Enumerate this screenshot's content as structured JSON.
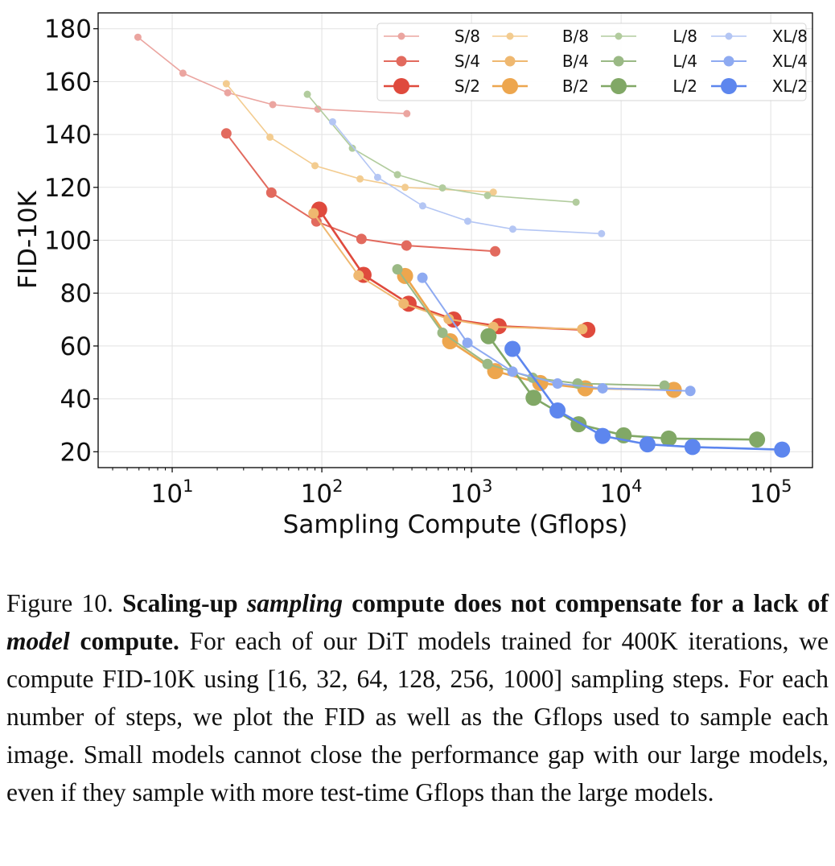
{
  "chart_data": {
    "type": "line",
    "xscale": "log",
    "xlim": [
      3.2,
      190000
    ],
    "ylim": [
      14,
      186
    ],
    "xlabel": "Sampling Compute (Gflops)",
    "ylabel": "FID-10K",
    "yticks": [
      20,
      40,
      60,
      80,
      100,
      120,
      140,
      160,
      180
    ],
    "xticks": [
      {
        "base": "10",
        "exp": "1",
        "value": 10
      },
      {
        "base": "10",
        "exp": "2",
        "value": 100
      },
      {
        "base": "10",
        "exp": "3",
        "value": 1000
      },
      {
        "base": "10",
        "exp": "4",
        "value": 10000
      },
      {
        "base": "10",
        "exp": "5",
        "value": 100000
      }
    ],
    "grid": true,
    "legend_position": "top-right",
    "series": [
      {
        "name": "S/8",
        "color": "#eba5a0",
        "size": "small",
        "points": [
          [
            5.9,
            176.8
          ],
          [
            11.8,
            163.2
          ],
          [
            23.5,
            155.8
          ],
          [
            47,
            151.3
          ],
          [
            94,
            149.6
          ],
          [
            370,
            147.9
          ]
        ]
      },
      {
        "name": "S/4",
        "color": "#e26a5e",
        "size": "medium",
        "points": [
          [
            23,
            140.4
          ],
          [
            46,
            118.0
          ],
          [
            92,
            107.1
          ],
          [
            184,
            100.5
          ],
          [
            368,
            98.0
          ],
          [
            1440,
            95.8
          ]
        ]
      },
      {
        "name": "S/2",
        "color": "#df4a3d",
        "size": "large",
        "points": [
          [
            96,
            111.6
          ],
          [
            190,
            86.9
          ],
          [
            380,
            76.0
          ],
          [
            760,
            70.0
          ],
          [
            1520,
            67.5
          ],
          [
            5950,
            66.1
          ]
        ]
      },
      {
        "name": "B/8",
        "color": "#f3cc90",
        "size": "small",
        "points": [
          [
            23,
            159.2
          ],
          [
            45,
            139.0
          ],
          [
            90,
            128.2
          ],
          [
            180,
            123.2
          ],
          [
            360,
            120.0
          ],
          [
            1400,
            118.2
          ]
        ]
      },
      {
        "name": "B/4",
        "color": "#efb870",
        "size": "medium",
        "points": [
          [
            88,
            110.2
          ],
          [
            176,
            86.7
          ],
          [
            352,
            76.0
          ],
          [
            704,
            70.2
          ],
          [
            1400,
            67.2
          ],
          [
            5500,
            66.4
          ]
        ]
      },
      {
        "name": "B/2",
        "color": "#eda64e",
        "size": "large",
        "points": [
          [
            360,
            86.5
          ],
          [
            720,
            61.8
          ],
          [
            1440,
            50.5
          ],
          [
            2880,
            46.0
          ],
          [
            5760,
            44.0
          ],
          [
            22500,
            43.4
          ]
        ]
      },
      {
        "name": "L/8",
        "color": "#b2cc9e",
        "size": "small",
        "points": [
          [
            80,
            155.2
          ],
          [
            160,
            134.8
          ],
          [
            320,
            124.8
          ],
          [
            640,
            119.8
          ],
          [
            1280,
            116.9
          ],
          [
            5000,
            114.4
          ]
        ]
      },
      {
        "name": "L/4",
        "color": "#9ab985",
        "size": "medium",
        "points": [
          [
            320,
            89.0
          ],
          [
            640,
            65.0
          ],
          [
            1280,
            53.2
          ],
          [
            2560,
            48.0
          ],
          [
            5120,
            45.8
          ],
          [
            19500,
            45.0
          ]
        ]
      },
      {
        "name": "L/2",
        "color": "#81a866",
        "size": "large",
        "points": [
          [
            1300,
            63.7
          ],
          [
            2600,
            40.4
          ],
          [
            5200,
            30.4
          ],
          [
            10400,
            26.2
          ],
          [
            20800,
            25.0
          ],
          [
            81000,
            24.6
          ]
        ]
      },
      {
        "name": "XL/8",
        "color": "#b4c6f4",
        "size": "small",
        "points": [
          [
            118,
            144.8
          ],
          [
            236,
            123.8
          ],
          [
            472,
            113.0
          ],
          [
            944,
            107.2
          ],
          [
            1888,
            104.2
          ],
          [
            7400,
            102.5
          ]
        ]
      },
      {
        "name": "XL/4",
        "color": "#8eaaf1",
        "size": "medium",
        "points": [
          [
            470,
            85.8
          ],
          [
            940,
            61.2
          ],
          [
            1880,
            50.3
          ],
          [
            3760,
            45.8
          ],
          [
            7520,
            44.0
          ],
          [
            29000,
            43.0
          ]
        ]
      },
      {
        "name": "XL/2",
        "color": "#5d86ee",
        "size": "large",
        "points": [
          [
            1880,
            58.9
          ],
          [
            3760,
            35.6
          ],
          [
            7520,
            26.0
          ],
          [
            15000,
            22.8
          ],
          [
            30000,
            21.8
          ],
          [
            119000,
            20.8
          ]
        ]
      }
    ]
  },
  "caption": {
    "figure_label": "Figure 10.",
    "bold_part1": "Scaling-up ",
    "bold_italic1": "sampling",
    "bold_part2": " compute does not compensate for a lack of ",
    "bold_italic2": "model",
    "bold_part3": " compute.",
    "body": "For each of our DiT models trained for 400K iterations, we compute FID-10K using [16, 32, 64, 128, 256, 1000] sampling steps. For each number of steps, we plot the FID as well as the Gflops used to sample each image. Small models cannot close the performance gap with our large models, even if they sample with more test-time Gflops than the large models."
  }
}
